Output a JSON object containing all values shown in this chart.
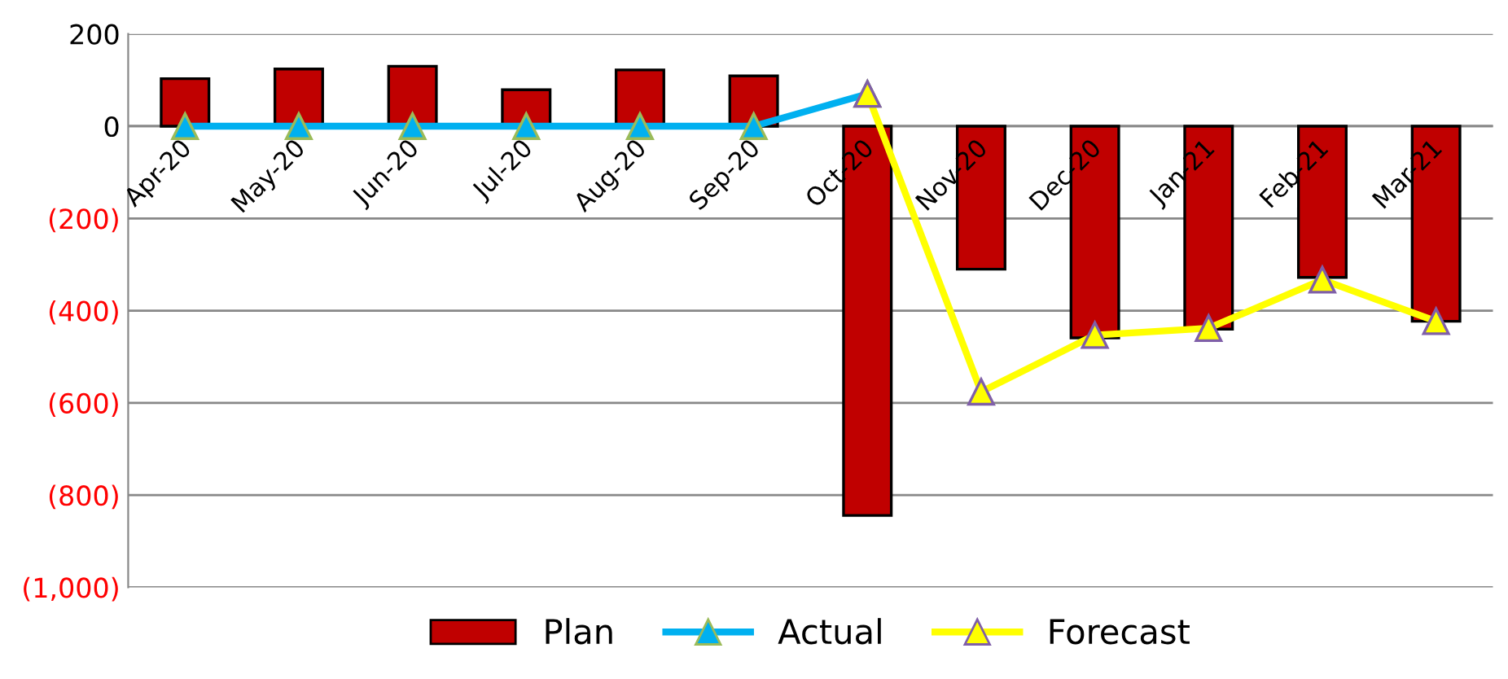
{
  "chart_data": {
    "type": "bar",
    "categories": [
      "Apr-20",
      "May-20",
      "Jun-20",
      "Jul-20",
      "Aug-20",
      "Sep-20",
      "Oct-20",
      "Nov-20",
      "Dec-20",
      "Jan-21",
      "Feb-21",
      "Mar-21"
    ],
    "series": [
      {
        "name": "Plan",
        "color": "#c00000",
        "values": [
          103,
          124,
          130,
          79,
          122,
          109,
          -844,
          -310,
          -459,
          -440,
          -328,
          -423
        ]
      },
      {
        "name": "Actual",
        "type": "line",
        "color": "#00b0f0",
        "values": [
          0,
          0,
          0,
          0,
          0,
          0,
          70,
          null,
          null,
          null,
          null,
          null
        ]
      },
      {
        "name": "Forecast",
        "type": "line",
        "color": "#ffff00",
        "values": [
          null,
          null,
          null,
          null,
          null,
          null,
          70,
          -576,
          -453,
          -438,
          -333,
          -423
        ]
      }
    ],
    "ylim": [
      -1000,
      200
    ],
    "yticks": [
      200,
      0,
      {
        "value": -200,
        "label": "(200)"
      },
      {
        "value": -400,
        "label": "(400)"
      },
      {
        "value": -600,
        "label": "(600)"
      },
      {
        "value": -800,
        "label": "(800)"
      },
      {
        "value": -1000,
        "label": "(1,000)"
      }
    ],
    "grid": "y",
    "legend": "bottom",
    "marker": "triangle",
    "line_style": "solid"
  }
}
